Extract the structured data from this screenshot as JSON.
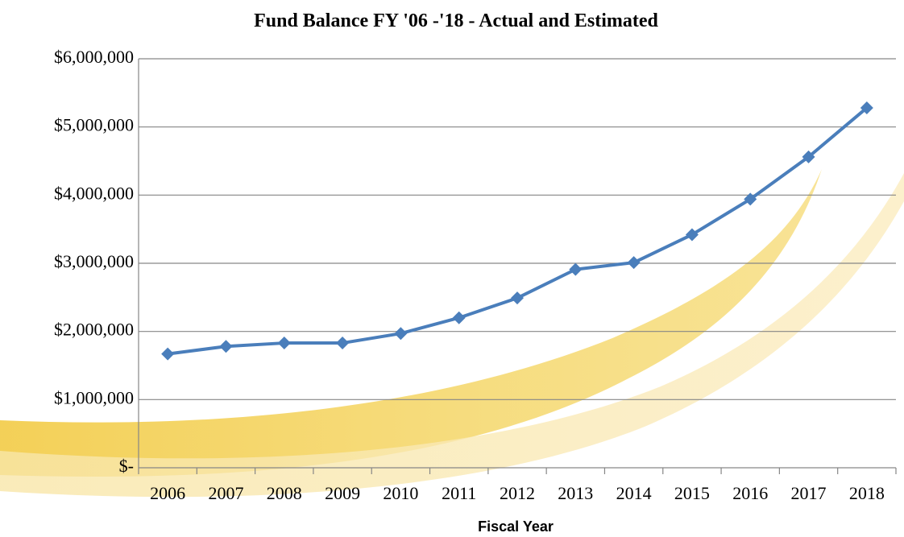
{
  "chart_data": {
    "type": "line",
    "title": "Fund Balance FY '06 -'18 - Actual and Estimated",
    "x_label": "Fiscal Year",
    "categories": [
      "2006",
      "2007",
      "2008",
      "2009",
      "2010",
      "2011",
      "2012",
      "2013",
      "2014",
      "2015",
      "2016",
      "2017",
      "2018"
    ],
    "values": [
      1670000,
      1780000,
      1830000,
      1830000,
      1970000,
      2200000,
      2490000,
      2910000,
      3010000,
      3420000,
      3940000,
      4560000,
      5280000
    ],
    "color": "#4a7ebb",
    "ylim": [
      0,
      6000000
    ],
    "yticks": [
      {
        "value": 0,
        "label": "$-"
      },
      {
        "value": 1000000,
        "label": "$1,000,000"
      },
      {
        "value": 2000000,
        "label": "$2,000,000"
      },
      {
        "value": 3000000,
        "label": "$3,000,000"
      },
      {
        "value": 4000000,
        "label": "$4,000,000"
      },
      {
        "value": 5000000,
        "label": "$5,000,000"
      },
      {
        "value": 6000000,
        "label": "$6,000,000"
      }
    ],
    "grid": true
  }
}
